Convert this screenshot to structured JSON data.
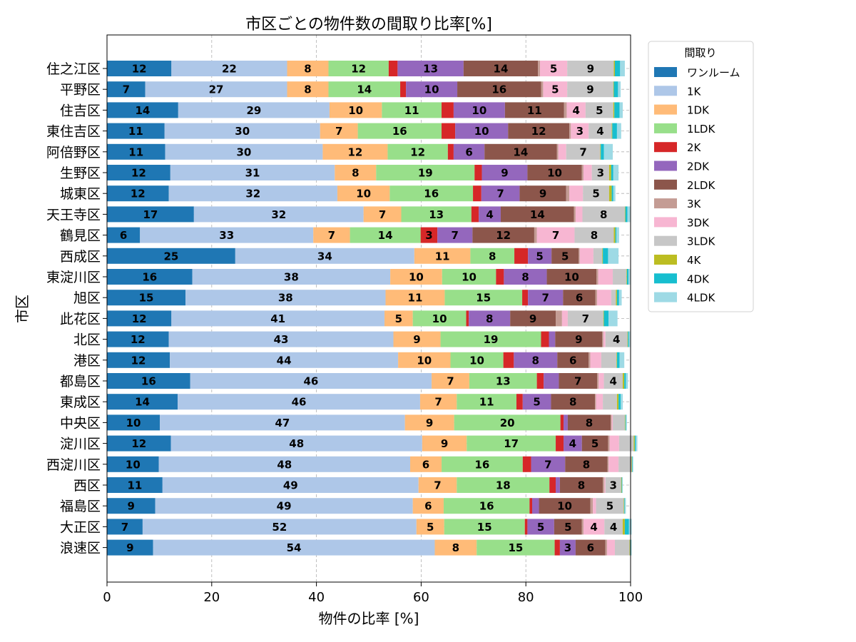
{
  "chart_data": {
    "type": "bar",
    "orientation": "horizontal",
    "stacked": true,
    "title": "市区ごとの物件数の間取り比率[%]",
    "xlabel": "物件の比率 [%]",
    "ylabel": "市区",
    "xlim": [
      0,
      100
    ],
    "xticks": [
      "0",
      "20",
      "40",
      "60",
      "80",
      "100"
    ],
    "grid": true,
    "legend": {
      "title": "間取り",
      "placement": "outside-right-top"
    },
    "categories": [
      "住之江区",
      "平野区",
      "住吉区",
      "東住吉区",
      "阿倍野区",
      "生野区",
      "城東区",
      "天王寺区",
      "鶴見区",
      "西成区",
      "東淀川区",
      "旭区",
      "此花区",
      "北区",
      "港区",
      "都島区",
      "東成区",
      "中央区",
      "淀川区",
      "西淀川区",
      "西区",
      "福島区",
      "大正区",
      "浪速区"
    ],
    "series": [
      {
        "name": "ワンルーム",
        "color": "#1f77b4",
        "values": [
          12.3,
          7.3,
          13.6,
          11.0,
          11.1,
          12.1,
          11.8,
          16.6,
          6.3,
          24.5,
          16.3,
          15.0,
          12.3,
          11.8,
          12.0,
          15.9,
          13.5,
          10.1,
          12.2,
          9.9,
          10.6,
          9.2,
          6.8,
          8.8
        ]
      },
      {
        "name": "1K",
        "color": "#aec7e8",
        "values": [
          22.1,
          27.1,
          28.9,
          29.7,
          30.1,
          31.4,
          32.2,
          32.4,
          33.1,
          34.2,
          37.8,
          38.2,
          40.7,
          42.9,
          43.6,
          46.1,
          46.3,
          46.8,
          48.0,
          48.0,
          48.9,
          49.2,
          52.3,
          53.8
        ]
      },
      {
        "name": "1DK",
        "color": "#ffbb78",
        "values": [
          7.9,
          7.9,
          10.0,
          7.2,
          12.4,
          7.9,
          10.0,
          7.2,
          7.0,
          10.7,
          9.9,
          11.3,
          5.4,
          9.0,
          10.0,
          7.2,
          7.0,
          9.4,
          8.5,
          6.0,
          7.3,
          5.9,
          5.3,
          8.0
        ]
      },
      {
        "name": "1LDK",
        "color": "#98df8a",
        "values": [
          11.5,
          13.7,
          11.4,
          16.0,
          11.5,
          18.8,
          15.9,
          13.4,
          13.5,
          8.4,
          10.3,
          14.8,
          10.2,
          19.2,
          10.1,
          12.9,
          11.4,
          20.3,
          17.0,
          15.5,
          17.7,
          16.4,
          15.4,
          14.9
        ]
      },
      {
        "name": "2K",
        "color": "#d62728",
        "values": [
          1.7,
          1.1,
          2.3,
          2.6,
          1.1,
          1.4,
          1.6,
          1.4,
          3.2,
          2.6,
          1.5,
          1.1,
          0.5,
          1.5,
          2.0,
          1.3,
          1.2,
          0.6,
          1.5,
          1.6,
          1.2,
          0.5,
          0.5,
          1.0
        ]
      },
      {
        "name": "2DK",
        "color": "#9467bd",
        "values": [
          12.6,
          9.8,
          9.8,
          10.1,
          5.9,
          8.7,
          7.3,
          4.2,
          6.7,
          4.5,
          8.2,
          6.7,
          7.9,
          1.2,
          8.3,
          2.9,
          5.4,
          0.8,
          3.5,
          6.5,
          0.8,
          1.3,
          5.1,
          3.0
        ]
      },
      {
        "name": "2LDK",
        "color": "#8c564b",
        "values": [
          14.2,
          16.0,
          11.3,
          11.7,
          13.8,
          10.4,
          8.9,
          14.0,
          11.8,
          5.2,
          9.5,
          6.2,
          8.7,
          9.0,
          6.0,
          7.3,
          8.4,
          8.2,
          5.0,
          8.1,
          8.2,
          9.8,
          5.3,
          5.7
        ]
      },
      {
        "name": "3K",
        "color": "#c49c94",
        "values": [
          0.4,
          0.4,
          0.5,
          0.3,
          0.3,
          0.3,
          0.6,
          0.3,
          0.5,
          0.2,
          0.3,
          0.3,
          1.2,
          0.2,
          0.3,
          0.3,
          0.2,
          0.2,
          0.3,
          0.2,
          0.3,
          0.5,
          0.3,
          0.3
        ]
      },
      {
        "name": "3DK",
        "color": "#f7b6d2",
        "values": [
          5.2,
          4.6,
          3.6,
          3.4,
          1.5,
          1.6,
          2.6,
          1.3,
          7.2,
          2.6,
          2.8,
          2.7,
          1.1,
          0.4,
          2.1,
          1.0,
          1.3,
          0.2,
          1.8,
          1.9,
          0.2,
          0.6,
          4.0,
          1.5
        ]
      },
      {
        "name": "3LDK",
        "color": "#c7c7c7",
        "values": [
          8.9,
          8.8,
          5.3,
          4.4,
          6.5,
          3.3,
          5.0,
          8.1,
          7.5,
          1.7,
          2.6,
          0.9,
          6.8,
          4.2,
          2.9,
          3.6,
          2.7,
          2.3,
          2.8,
          2.5,
          3.0,
          5.3,
          3.5,
          2.8
        ]
      },
      {
        "name": "4K",
        "color": "#bcbd22",
        "values": [
          0.2,
          0.1,
          0.2,
          0.1,
          0.1,
          0.4,
          0.5,
          0.1,
          0.3,
          0.1,
          0.1,
          0.2,
          0.1,
          0.1,
          0.1,
          0.3,
          0.3,
          0.1,
          0.2,
          0.1,
          0.1,
          0.1,
          0.4,
          0.1
        ]
      },
      {
        "name": "4DK",
        "color": "#17becf",
        "values": [
          1.0,
          0.8,
          1.0,
          0.9,
          0.6,
          0.4,
          0.3,
          0.4,
          0.2,
          1.0,
          0.3,
          0.4,
          0.9,
          0.2,
          0.5,
          0.3,
          0.4,
          0.1,
          0.2,
          0.1,
          0.1,
          0.1,
          0.8,
          0.1
        ]
      },
      {
        "name": "4LDK",
        "color": "#9edae5",
        "values": [
          0.9,
          0.5,
          0.6,
          0.8,
          1.7,
          1.0,
          0.4,
          0.5,
          0.5,
          2.0,
          0.3,
          0.5,
          1.7,
          0.2,
          0.9,
          0.4,
          0.4,
          0.2,
          0.3,
          0.1,
          0.1,
          0.2,
          0.5,
          0.2
        ]
      }
    ]
  }
}
